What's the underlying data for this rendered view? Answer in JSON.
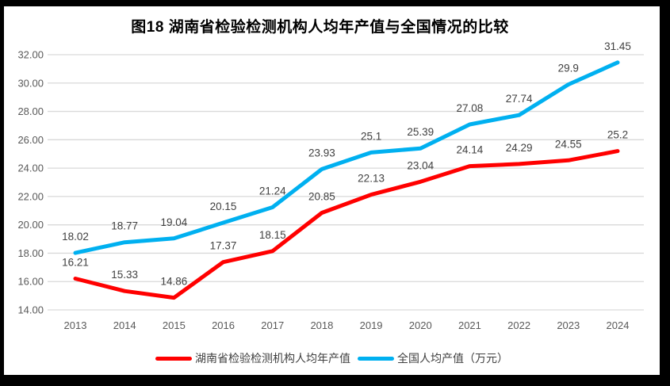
{
  "chart_data": {
    "type": "line",
    "title": "图18 湖南省检验检测机构人均年产值与全国情况的比较",
    "categories": [
      "2013",
      "2014",
      "2015",
      "2016",
      "2017",
      "2018",
      "2019",
      "2020",
      "2021",
      "2022",
      "2023",
      "2024"
    ],
    "series": [
      {
        "id": "hunan",
        "name": "湖南省检验检测机构人均年产值",
        "color": "#FF0000",
        "values": [
          16.21,
          15.33,
          14.86,
          17.37,
          18.15,
          20.85,
          22.13,
          23.04,
          24.14,
          24.29,
          24.55,
          25.2
        ],
        "labels": [
          "16.21",
          "15.33",
          "14.86",
          "17.37",
          "18.15",
          "20.85",
          "22.13",
          "23.04",
          "24.14",
          "24.29",
          "24.55",
          "25.2"
        ]
      },
      {
        "id": "national",
        "name": "全国人均产值（万元）",
        "color": "#00B0F0",
        "values": [
          18.02,
          18.77,
          19.04,
          20.15,
          21.24,
          23.93,
          25.1,
          25.39,
          27.08,
          27.74,
          29.9,
          31.45
        ],
        "labels": [
          "18.02",
          "18.77",
          "19.04",
          "20.15",
          "21.24",
          "23.93",
          "25.1",
          "25.39",
          "27.08",
          "27.74",
          "29.9",
          "31.45"
        ]
      }
    ],
    "ylim": [
      14,
      32
    ],
    "ytick_step": 2,
    "ytick_labels": [
      "32.00",
      "30.00",
      "28.00",
      "26.00",
      "24.00",
      "22.00",
      "20.00",
      "18.00",
      "16.00",
      "14.00"
    ],
    "grid": true,
    "data_labels": true,
    "legend_position": "bottom"
  },
  "colors": {
    "frame": "#000000",
    "background": "#FFFFFF",
    "gridline": "#D9D9D9",
    "axis_text": "#595959",
    "data_label_text": "#404040",
    "title_text": "#000000",
    "legend_text": "#404040"
  }
}
